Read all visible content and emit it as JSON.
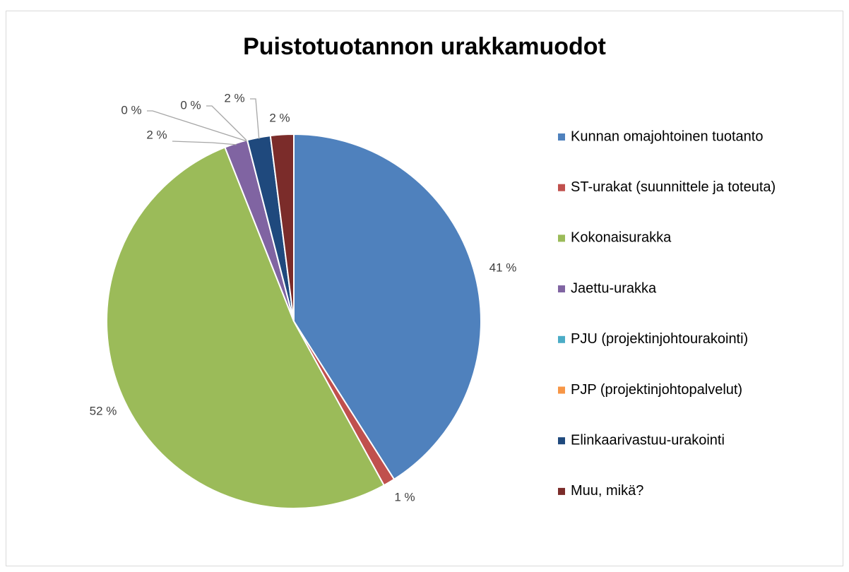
{
  "chart_data": {
    "type": "pie",
    "title": "Puistotuotannon urakkamuodot",
    "categories": [
      "Kunnan omajohtoinen tuotanto",
      "ST-urakat (suunnittele ja toteuta)",
      "Kokonaisurakka",
      "Jaettu-urakka",
      "PJU (projektinjohtourakointi)",
      "PJP (projektinjohtopalvelut)",
      "Elinkaarivastuu-urakointi",
      "Muu, mikä?"
    ],
    "values": [
      41,
      1,
      52,
      2,
      0,
      0,
      2,
      2
    ],
    "value_labels": [
      "41 %",
      "1 %",
      "52 %",
      "2 %",
      "0 %",
      "0 %",
      "2 %",
      "2 %"
    ],
    "colors": [
      "#4f81bd",
      "#c0504d",
      "#9bbb59",
      "#8064a2",
      "#4bacc6",
      "#f79646",
      "#1f497d",
      "#7b2c2a"
    ],
    "legend": "right"
  }
}
